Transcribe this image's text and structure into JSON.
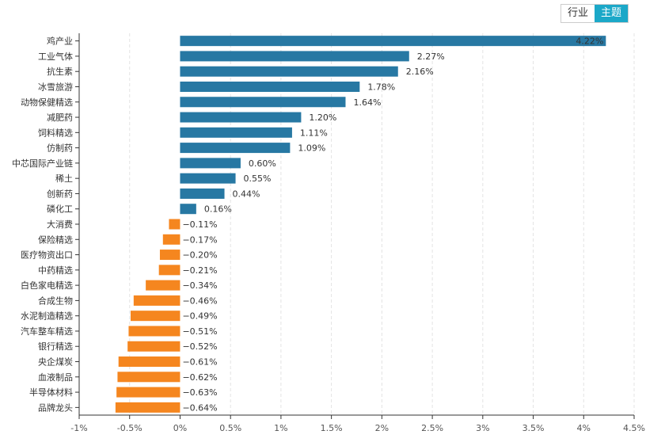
{
  "toggle": {
    "industry_label": "行业",
    "theme_label": "主题",
    "active": "theme"
  },
  "colors": {
    "positive": "#2778a3",
    "negative": "#f5861f",
    "grid": "#e3e3e3",
    "axis": "#333333"
  },
  "chart_data": {
    "type": "bar",
    "orientation": "horizontal",
    "categories": [
      "鸡产业",
      "工业气体",
      "抗生素",
      "冰雪旅游",
      "动物保健精选",
      "减肥药",
      "饲料精选",
      "仿制药",
      "中芯国际产业链",
      "稀土",
      "创新药",
      "磷化工",
      "大消费",
      "保险精选",
      "医疗物资出口",
      "中药精选",
      "白色家电精选",
      "合成生物",
      "水泥制造精选",
      "汽车整车精选",
      "银行精选",
      "央企煤炭",
      "血液制品",
      "半导体材料",
      "品牌龙头"
    ],
    "values": [
      4.22,
      2.27,
      2.16,
      1.78,
      1.64,
      1.2,
      1.11,
      1.09,
      0.6,
      0.55,
      0.44,
      0.16,
      -0.11,
      -0.17,
      -0.2,
      -0.21,
      -0.34,
      -0.46,
      -0.49,
      -0.51,
      -0.52,
      -0.61,
      -0.62,
      -0.63,
      -0.64
    ],
    "value_labels": [
      "4.22%",
      "2.27%",
      "2.16%",
      "1.78%",
      "1.64%",
      "1.20%",
      "1.11%",
      "1.09%",
      "0.60%",
      "0.55%",
      "0.44%",
      "0.16%",
      "−0.11%",
      "−0.17%",
      "−0.20%",
      "−0.21%",
      "−0.34%",
      "−0.46%",
      "−0.49%",
      "−0.51%",
      "−0.52%",
      "−0.61%",
      "−0.62%",
      "−0.63%",
      "−0.64%"
    ],
    "x_ticks": [
      -1,
      -0.5,
      0,
      0.5,
      1,
      1.5,
      2,
      2.5,
      3,
      3.5,
      4,
      4.5
    ],
    "x_tick_labels": [
      "-1%",
      "-0.5%",
      "0%",
      "0.5%",
      "1%",
      "1.5%",
      "2%",
      "2.5%",
      "3%",
      "3.5%",
      "4%",
      "4.5%"
    ],
    "xlim": [
      -1,
      4.5
    ],
    "grid": true,
    "title": "",
    "xlabel": "",
    "ylabel": ""
  }
}
